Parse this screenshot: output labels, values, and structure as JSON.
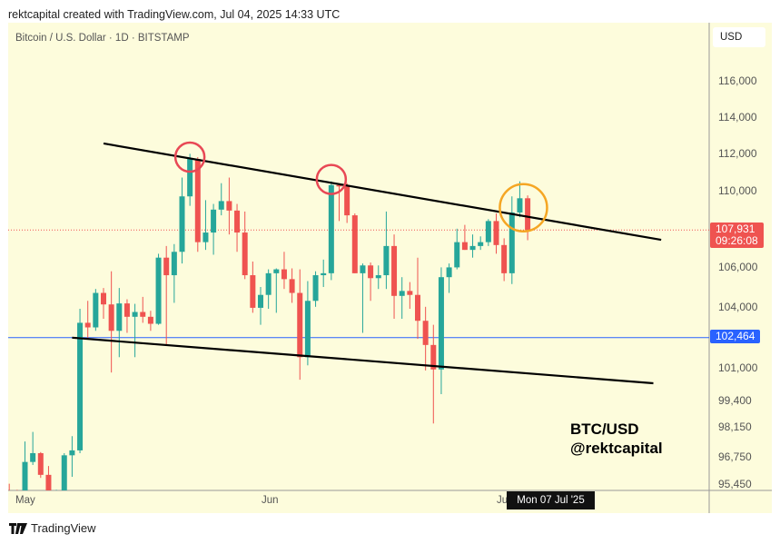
{
  "header": {
    "credit": "rektcapital created with TradingView.com, Jul 04, 2025 14:33 UTC"
  },
  "symbol_line": "Bitcoin / U.S. Dollar · 1D · BITSTAMP",
  "currency": "USD",
  "watermark": {
    "line1": "BTC/USD",
    "line2": "@rektcapital"
  },
  "footer": {
    "brand": "TradingView",
    "logo_icon": "tradingview-logo-icon"
  },
  "crosshair_date": "Mon 07 Jul '25",
  "colors": {
    "up": "#26a69a",
    "down": "#ef5350",
    "background": "#fdfcdc",
    "support": "#2962ff",
    "circle_red": "#e84855",
    "circle_orange": "#f5a623"
  },
  "chart_data": {
    "type": "candlestick",
    "y_scale": "log",
    "grid": false,
    "x_ticks": [
      "May",
      "Jun",
      "Ju"
    ],
    "y_ticks": [
      "116,000",
      "114,000",
      "112,000",
      "110,000",
      "106,000",
      "104,000",
      "101,000",
      "99,400",
      "98,150",
      "96,750",
      "95,450"
    ],
    "last_price": {
      "value": "107,931",
      "countdown": "09:26:08"
    },
    "horizontal_line": {
      "value": "102,464"
    },
    "trendlines": [
      {
        "from": [
          "2025-05-11",
          112540
        ],
        "to": [
          "2025-07-21",
          107420
        ]
      },
      {
        "from": [
          "2025-05-07",
          102460
        ],
        "to": [
          "2025-07-20",
          100230
        ]
      }
    ],
    "circles": [
      {
        "date": "2025-05-22",
        "price": 111800,
        "color": "red"
      },
      {
        "date": "2025-06-09",
        "price": 110600,
        "color": "red"
      },
      {
        "date": "2025-07-03",
        "price": 109100,
        "color": "orange"
      }
    ],
    "columns": [
      "date",
      "open",
      "high",
      "low",
      "close"
    ],
    "candles": [
      [
        "2025-04-29",
        94980,
        95480,
        93800,
        94270
      ],
      [
        "2025-04-30",
        94270,
        95200,
        92900,
        94170
      ],
      [
        "2025-05-01",
        94170,
        97450,
        94100,
        96490
      ],
      [
        "2025-05-02",
        96490,
        97900,
        96350,
        96900
      ],
      [
        "2025-05-03",
        96900,
        96950,
        95750,
        95890
      ],
      [
        "2025-05-04",
        95890,
        96300,
        94100,
        94300
      ],
      [
        "2025-05-05",
        94300,
        95200,
        93500,
        94750
      ],
      [
        "2025-05-06",
        94750,
        96900,
        93400,
        96800
      ],
      [
        "2025-05-07",
        96800,
        97700,
        95800,
        97030
      ],
      [
        "2025-05-08",
        97030,
        103900,
        96900,
        103200
      ],
      [
        "2025-05-09",
        103200,
        104300,
        102400,
        102970
      ],
      [
        "2025-05-10",
        102970,
        104900,
        102800,
        104700
      ],
      [
        "2025-05-11",
        104700,
        104950,
        103400,
        104120
      ],
      [
        "2025-05-12",
        104120,
        105800,
        100750,
        102800
      ],
      [
        "2025-05-13",
        102800,
        104950,
        101500,
        104170
      ],
      [
        "2025-05-14",
        104170,
        104380,
        102700,
        103500
      ],
      [
        "2025-05-15",
        103500,
        104150,
        101500,
        103740
      ],
      [
        "2025-05-16",
        103740,
        104500,
        103200,
        103500
      ],
      [
        "2025-05-17",
        103500,
        103800,
        102800,
        103150
      ],
      [
        "2025-05-18",
        103150,
        106700,
        103100,
        106500
      ],
      [
        "2025-05-19",
        106500,
        107100,
        102100,
        105600
      ],
      [
        "2025-05-20",
        105600,
        107200,
        104200,
        106800
      ],
      [
        "2025-05-21",
        106800,
        110700,
        106200,
        109700
      ],
      [
        "2025-05-22",
        109700,
        111980,
        109200,
        111700
      ],
      [
        "2025-05-23",
        111700,
        111800,
        106800,
        107300
      ],
      [
        "2025-05-24",
        107300,
        109500,
        106900,
        107800
      ],
      [
        "2025-05-25",
        107800,
        109300,
        106650,
        109000
      ],
      [
        "2025-05-26",
        109000,
        110400,
        108700,
        109450
      ],
      [
        "2025-05-27",
        109450,
        110700,
        107700,
        108950
      ],
      [
        "2025-05-28",
        108950,
        109300,
        106800,
        107800
      ],
      [
        "2025-05-29",
        107800,
        108900,
        105400,
        105600
      ],
      [
        "2025-05-30",
        105600,
        106300,
        103700,
        103950
      ],
      [
        "2025-05-31",
        103950,
        105000,
        103100,
        104600
      ],
      [
        "2025-06-01",
        104600,
        105900,
        103900,
        105700
      ],
      [
        "2025-06-02",
        105700,
        105950,
        103700,
        105900
      ],
      [
        "2025-06-03",
        105900,
        106800,
        104900,
        105400
      ],
      [
        "2025-06-04",
        105400,
        105950,
        104200,
        104700
      ],
      [
        "2025-06-05",
        104700,
        105900,
        100400,
        101500
      ],
      [
        "2025-06-06",
        101500,
        105300,
        101100,
        104300
      ],
      [
        "2025-06-07",
        104300,
        105800,
        104000,
        105600
      ],
      [
        "2025-06-08",
        105600,
        106400,
        105000,
        105700
      ],
      [
        "2025-06-09",
        105700,
        110500,
        105350,
        110300
      ],
      [
        "2025-06-10",
        110300,
        110400,
        108400,
        110250
      ],
      [
        "2025-06-11",
        110250,
        110400,
        108300,
        108700
      ],
      [
        "2025-06-12",
        108700,
        108800,
        105700,
        105700
      ],
      [
        "2025-06-13",
        105700,
        106200,
        102700,
        106100
      ],
      [
        "2025-06-14",
        106100,
        106250,
        104300,
        105450
      ],
      [
        "2025-06-15",
        105450,
        106100,
        104900,
        105600
      ],
      [
        "2025-06-16",
        105600,
        108900,
        104900,
        107100
      ],
      [
        "2025-06-17",
        107100,
        107700,
        103400,
        104550
      ],
      [
        "2025-06-18",
        104550,
        105500,
        103400,
        104800
      ],
      [
        "2025-06-19",
        104800,
        105250,
        103900,
        104600
      ],
      [
        "2025-06-20",
        104600,
        106500,
        102400,
        103300
      ],
      [
        "2025-06-21",
        103300,
        104000,
        100850,
        102100
      ],
      [
        "2025-06-22",
        102100,
        103100,
        98300,
        100900
      ],
      [
        "2025-06-23",
        100900,
        106000,
        99700,
        105500
      ],
      [
        "2025-06-24",
        105500,
        106200,
        104700,
        106000
      ],
      [
        "2025-06-25",
        106000,
        108000,
        105900,
        107300
      ],
      [
        "2025-06-26",
        107300,
        108200,
        106900,
        106900
      ],
      [
        "2025-06-27",
        106900,
        107700,
        106500,
        107100
      ],
      [
        "2025-06-28",
        107100,
        107600,
        106900,
        107300
      ],
      [
        "2025-06-29",
        107300,
        108500,
        107100,
        108400
      ],
      [
        "2025-06-30",
        108400,
        108800,
        106700,
        107150
      ],
      [
        "2025-07-01",
        107150,
        107500,
        105300,
        105700
      ],
      [
        "2025-07-02",
        105700,
        109700,
        105150,
        108850
      ],
      [
        "2025-07-03",
        108850,
        110500,
        108600,
        109600
      ],
      [
        "2025-07-04",
        109600,
        109750,
        107400,
        107931
      ]
    ]
  }
}
